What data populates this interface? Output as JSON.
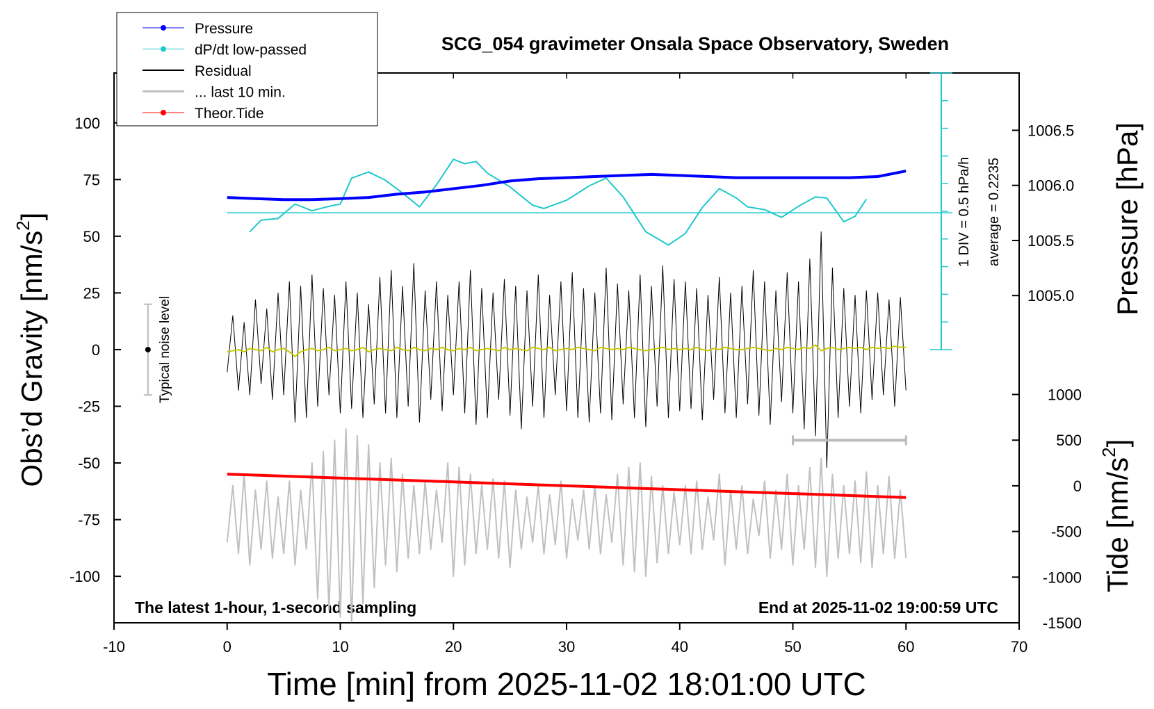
{
  "chart_data": {
    "type": "line",
    "title": "SCG_054 gravimeter Onsala Space Observatory, Sweden",
    "xlabel": "Time [min] from 2025-11-02 18:01:00 UTC",
    "ylabel": {
      "text": "Obs’d Gravity [nm/s",
      "sup": "2",
      "end": "]"
    },
    "y2label": "Pressure [hPa]",
    "y3label": {
      "text": "Tide [nm/s",
      "sup": "2",
      "end": "]"
    },
    "annotations": {
      "left": "The latest 1-hour, 1-second sampling",
      "right": "End at 2025-11-02 19:00:59 UTC",
      "div_label": "1 DIV = 0.5 hPa/h",
      "average_label": "average = 0.2235",
      "noise_label": "Typical noise level"
    },
    "xlim": [
      -10,
      70
    ],
    "xticks": [
      -10,
      0,
      10,
      20,
      30,
      40,
      50,
      60,
      70
    ],
    "ylim": [
      -120.5,
      122
    ],
    "yticks": [
      -100,
      -75,
      -50,
      -25,
      0,
      25,
      50,
      75,
      100
    ],
    "y2lim": [
      1002.03,
      1007.02
    ],
    "y2ticks": [
      {
        "value": 1005,
        "label": "1005.0"
      },
      {
        "value": 1005.5,
        "label": "1005.5"
      },
      {
        "value": 1006,
        "label": "1006.0"
      },
      {
        "value": 1006.5,
        "label": "1006.5"
      }
    ],
    "y3lim": [
      -1500,
      4520
    ],
    "y3ticks": [
      -1500,
      -1000,
      -500,
      0,
      500,
      1000
    ],
    "dpdt_lim": [
      -2.25,
      2.75
    ],
    "dpdt_ticks": [
      -2.25,
      -1.75,
      -1.25,
      -0.75,
      -0.25,
      0.25,
      0.75,
      1.25,
      1.75,
      2.25,
      2.75
    ],
    "dpdt_average": 0.2235,
    "x": [
      0,
      0.5,
      1,
      1.5,
      2,
      2.5,
      3,
      3.5,
      4,
      4.5,
      5,
      5.5,
      6,
      6.5,
      7,
      7.5,
      8,
      8.5,
      9,
      9.5,
      10,
      10.5,
      11,
      11.5,
      12,
      12.5,
      13,
      13.5,
      14,
      14.5,
      15,
      15.5,
      16,
      16.5,
      17,
      17.5,
      18,
      18.5,
      19,
      19.5,
      20,
      20.5,
      21,
      21.5,
      22,
      22.5,
      23,
      23.5,
      24,
      24.5,
      25,
      25.5,
      26,
      26.5,
      27,
      27.5,
      28,
      28.5,
      29,
      29.5,
      30,
      30.5,
      31,
      31.5,
      32,
      32.5,
      33,
      33.5,
      34,
      34.5,
      35,
      35.5,
      36,
      36.5,
      37,
      37.5,
      38,
      38.5,
      39,
      39.5,
      40,
      40.5,
      41,
      41.5,
      42,
      42.5,
      43,
      43.5,
      44,
      44.5,
      45,
      45.5,
      46,
      46.5,
      47,
      47.5,
      48,
      48.5,
      49,
      49.5,
      50,
      50.5,
      51,
      51.5,
      52,
      52.5,
      53,
      53.5,
      54,
      54.5,
      55,
      55.5,
      56,
      56.5,
      57,
      57.5,
      58,
      58.5,
      59,
      59.5,
      60
    ],
    "series": [
      {
        "name": "Pressure",
        "color": "#0000ff",
        "axis": "y2",
        "marker": true,
        "width": 4,
        "x": [
          0,
          2.5,
          5,
          7.5,
          10,
          12.5,
          15,
          17.5,
          20,
          22.5,
          25,
          27.5,
          30,
          32.5,
          35,
          37.5,
          40,
          42.5,
          45,
          47.5,
          50,
          52.5,
          55,
          57.5,
          60
        ],
        "values": [
          1005.89,
          1005.88,
          1005.87,
          1005.87,
          1005.88,
          1005.89,
          1005.92,
          1005.94,
          1005.97,
          1006.0,
          1006.04,
          1006.06,
          1006.07,
          1006.08,
          1006.09,
          1006.1,
          1006.09,
          1006.08,
          1006.07,
          1006.07,
          1006.07,
          1006.07,
          1006.07,
          1006.08,
          1006.13
        ]
      },
      {
        "name": "dP/dt low-passed",
        "color": "#1ec8cc",
        "axis": "dpdt",
        "marker": true,
        "width": 2,
        "x": [
          2,
          3,
          4.5,
          6,
          7.5,
          9,
          10,
          11,
          12.5,
          14,
          15.5,
          17,
          18.5,
          20,
          21,
          22,
          23,
          25,
          27,
          28,
          30,
          32,
          33.5,
          35,
          37,
          39,
          40.5,
          42,
          43.5,
          45,
          46,
          47.5,
          49,
          50.5,
          52,
          53,
          54.5,
          55.5,
          56.5
        ],
        "values": [
          -0.12,
          0.09,
          0.12,
          0.38,
          0.26,
          0.34,
          0.38,
          0.85,
          0.96,
          0.81,
          0.58,
          0.33,
          0.73,
          1.19,
          1.11,
          1.15,
          0.94,
          0.69,
          0.36,
          0.3,
          0.45,
          0.71,
          0.85,
          0.51,
          -0.12,
          -0.36,
          -0.15,
          0.32,
          0.66,
          0.49,
          0.33,
          0.28,
          0.14,
          0.34,
          0.51,
          0.49,
          0.06,
          0.16,
          0.47
        ]
      },
      {
        "name": "Residual",
        "color": "#000000",
        "axis": "y",
        "marker": false,
        "width": 1,
        "values": [
          -10,
          15,
          -18,
          12,
          -20,
          22,
          -15,
          18,
          -22,
          25,
          -20,
          30,
          -32,
          28,
          -30,
          33,
          -25,
          27,
          -20,
          24,
          -28,
          30,
          -26,
          25,
          -30,
          20,
          -24,
          32,
          -28,
          35,
          -30,
          28,
          -25,
          38,
          -32,
          26,
          -22,
          30,
          -27,
          24,
          -20,
          30,
          -28,
          35,
          -33,
          27,
          -30,
          25,
          -22,
          31,
          -29,
          28,
          -35,
          26,
          -25,
          33,
          -30,
          24,
          -20,
          30,
          -27,
          34,
          -30,
          27,
          -32,
          25,
          -28,
          36,
          -31,
          29,
          -24,
          26,
          -30,
          33,
          -34,
          28,
          -25,
          37,
          -30,
          31,
          -27,
          30,
          -26,
          27,
          -31,
          24,
          -22,
          32,
          -28,
          25,
          -30,
          28,
          -24,
          35,
          -29,
          30,
          -33,
          26,
          -23,
          34,
          -28,
          30,
          -35,
          40,
          -38,
          52,
          -52,
          36,
          -30,
          27,
          -25,
          24,
          -28,
          26,
          -22,
          25,
          -20,
          22,
          -25,
          23,
          -18
        ]
      },
      {
        "name": "... last 10 min.",
        "color": "#c0c0c0",
        "axis": "y",
        "marker": false,
        "width": 2,
        "values": [
          -85,
          -60,
          -90,
          -55,
          -95,
          -62,
          -88,
          -58,
          -92,
          -65,
          -90,
          -58,
          -95,
          -62,
          -88,
          -50,
          -110,
          -45,
          -115,
          -40,
          -118,
          -35,
          -120,
          -38,
          -112,
          -42,
          -105,
          -50,
          -95,
          -48,
          -98,
          -55,
          -92,
          -60,
          -90,
          -58,
          -88,
          -62,
          -85,
          -50,
          -100,
          -52,
          -95,
          -55,
          -90,
          -60,
          -88,
          -57,
          -92,
          -58,
          -96,
          -62,
          -88,
          -65,
          -85,
          -60,
          -90,
          -64,
          -86,
          -58,
          -92,
          -66,
          -84,
          -62,
          -88,
          -60,
          -90,
          -64,
          -85,
          -55,
          -95,
          -52,
          -98,
          -50,
          -100,
          -56,
          -94,
          -60,
          -90,
          -63,
          -86,
          -60,
          -90,
          -58,
          -88,
          -65,
          -84,
          -55,
          -95,
          -62,
          -88,
          -60,
          -90,
          -66,
          -82,
          -58,
          -92,
          -62,
          -88,
          -55,
          -95,
          -60,
          -88,
          -52,
          -96,
          -48,
          -100,
          -55,
          -92,
          -60,
          -90,
          -58,
          -94,
          -54,
          -96,
          -60,
          -90,
          -56,
          -92,
          -62,
          -92
        ]
      },
      {
        "name": "Theor.Tide",
        "color": "#ff0000",
        "axis": "y3",
        "marker": true,
        "width": 4,
        "x": [
          0,
          10,
          20,
          30,
          40,
          50,
          60
        ],
        "values": [
          128,
          85,
          43,
          0,
          -43,
          -85,
          -128
        ]
      }
    ],
    "smoothed": {
      "color": "#c8c800",
      "values": [
        -1,
        -0.5,
        0,
        -1,
        0.5,
        0,
        -0.5,
        1,
        -1,
        0,
        0.5,
        -1,
        -3,
        -1,
        0,
        0.5,
        -0.5,
        0,
        1,
        -0.5,
        0,
        0.5,
        -0.5,
        0,
        1,
        -1,
        0,
        0.5,
        0,
        -0.5,
        1,
        0,
        -0.5,
        1,
        0,
        -0.5,
        0.5,
        0,
        1,
        0,
        -0.5,
        0.5,
        0,
        1,
        -0.5,
        0,
        0.5,
        0,
        -0.5,
        1,
        0,
        0.5,
        0,
        -0.5,
        1,
        0.5,
        0,
        1,
        -0.5,
        0,
        0.5,
        0,
        1,
        0.5,
        0,
        -0.5,
        1,
        0.5,
        0,
        0.5,
        0,
        1,
        0.5,
        0,
        -0.5,
        0,
        0.5,
        1,
        0,
        0.5,
        0,
        0.5,
        0,
        1,
        0,
        -0.5,
        0.5,
        0,
        1,
        0.5,
        0,
        0,
        0.5,
        1,
        0.5,
        0,
        -0.5,
        0.5,
        0,
        1,
        0.5,
        0,
        1,
        0.5,
        2,
        -0.5,
        0.5,
        1,
        0,
        0.5,
        1,
        0.5,
        1,
        0,
        1,
        0.5,
        1,
        0.5,
        1.5,
        1,
        1
      ]
    },
    "noise_bar": {
      "x": -7,
      "value": 0,
      "error": 20
    },
    "window_bar": {
      "x": [
        50,
        60
      ],
      "y": -40
    }
  }
}
